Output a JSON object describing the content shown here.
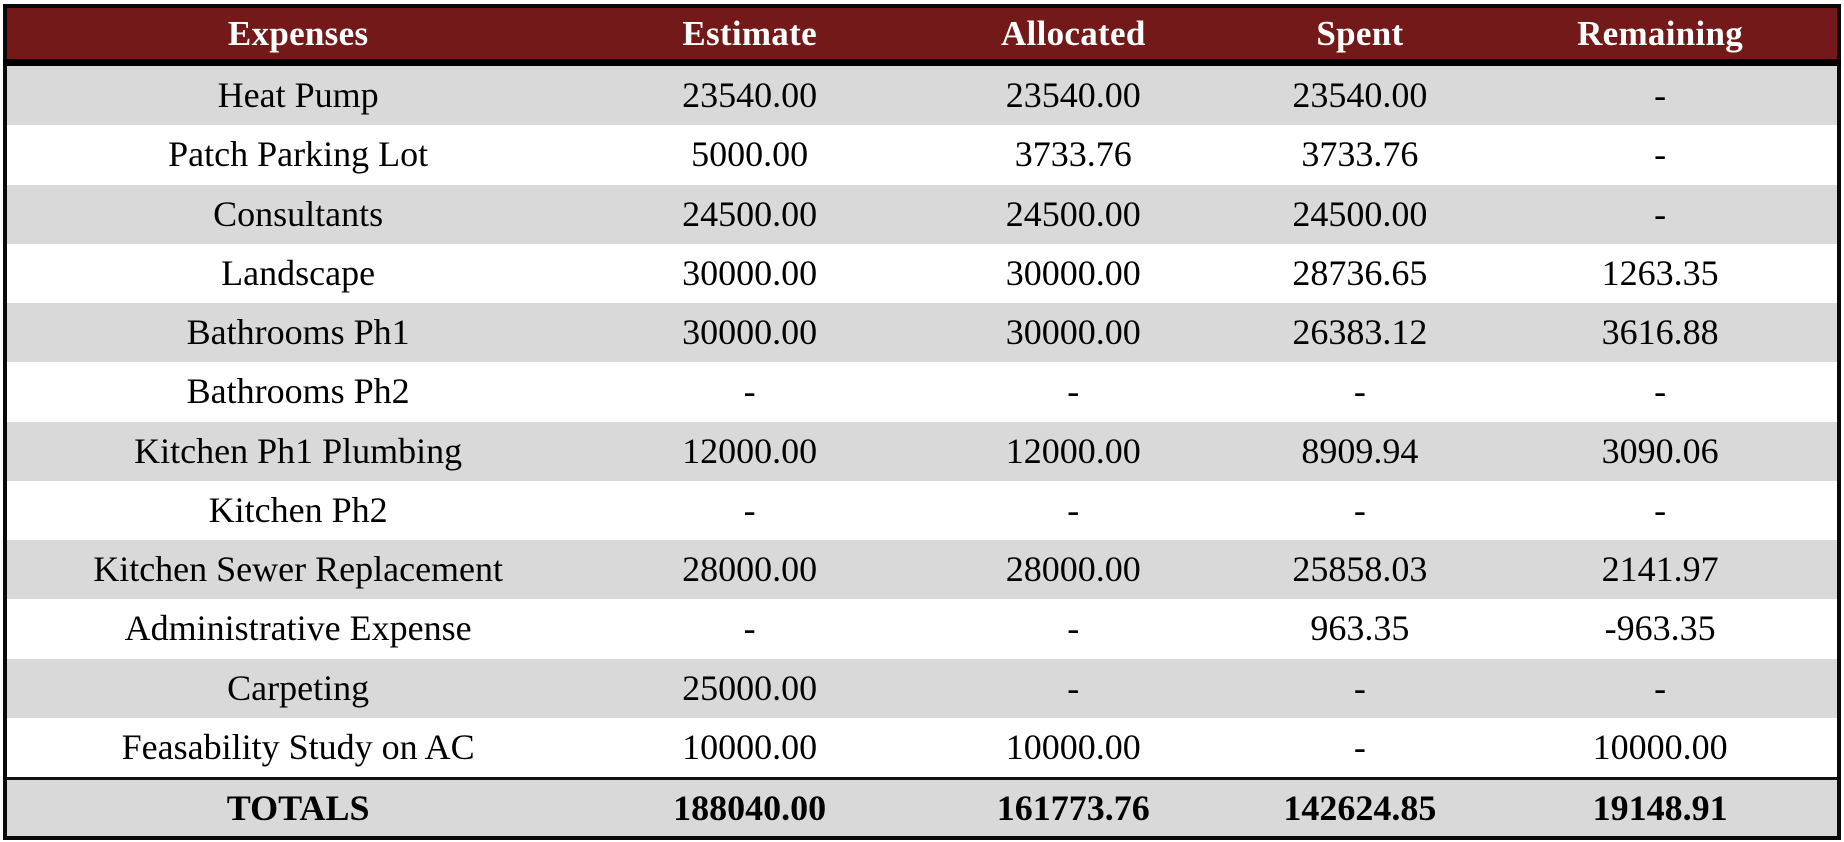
{
  "table": {
    "columns": [
      "Expenses",
      "Estimate",
      "Allocated",
      "Spent",
      "Remaining"
    ],
    "rows": [
      {
        "expense": "Heat Pump",
        "estimate": "23540.00",
        "allocated": "23540.00",
        "spent": "23540.00",
        "remaining": "-"
      },
      {
        "expense": "Patch Parking Lot",
        "estimate": "5000.00",
        "allocated": "3733.76",
        "spent": "3733.76",
        "remaining": "-"
      },
      {
        "expense": "Consultants",
        "estimate": "24500.00",
        "allocated": "24500.00",
        "spent": "24500.00",
        "remaining": "-"
      },
      {
        "expense": "Landscape",
        "estimate": "30000.00",
        "allocated": "30000.00",
        "spent": "28736.65",
        "remaining": "1263.35"
      },
      {
        "expense": "Bathrooms Ph1",
        "estimate": "30000.00",
        "allocated": "30000.00",
        "spent": "26383.12",
        "remaining": "3616.88"
      },
      {
        "expense": "Bathrooms Ph2",
        "estimate": "-",
        "allocated": "-",
        "spent": "-",
        "remaining": "-"
      },
      {
        "expense": "Kitchen Ph1 Plumbing",
        "estimate": "12000.00",
        "allocated": "12000.00",
        "spent": "8909.94",
        "remaining": "3090.06"
      },
      {
        "expense": "Kitchen Ph2",
        "estimate": "-",
        "allocated": "-",
        "spent": "-",
        "remaining": "-"
      },
      {
        "expense": "Kitchen Sewer Replacement",
        "estimate": "28000.00",
        "allocated": "28000.00",
        "spent": "25858.03",
        "remaining": "2141.97"
      },
      {
        "expense": "Administrative Expense",
        "estimate": "-",
        "allocated": "-",
        "spent": "963.35",
        "remaining": "-963.35"
      },
      {
        "expense": "Carpeting",
        "estimate": "25000.00",
        "allocated": "-",
        "spent": "-",
        "remaining": "-"
      },
      {
        "expense": "Feasability Study on AC",
        "estimate": "10000.00",
        "allocated": "10000.00",
        "spent": "-",
        "remaining": "10000.00"
      }
    ],
    "totals": {
      "label": "TOTALS",
      "estimate": "188040.00",
      "allocated": "161773.76",
      "spent": "142624.85",
      "remaining": "19148.91"
    }
  },
  "colors": {
    "header_bg": "#731919",
    "header_text": "#ffffff",
    "shaded_row": "#d9d9d9",
    "plain_row": "#ffffff",
    "border": "#000000"
  }
}
